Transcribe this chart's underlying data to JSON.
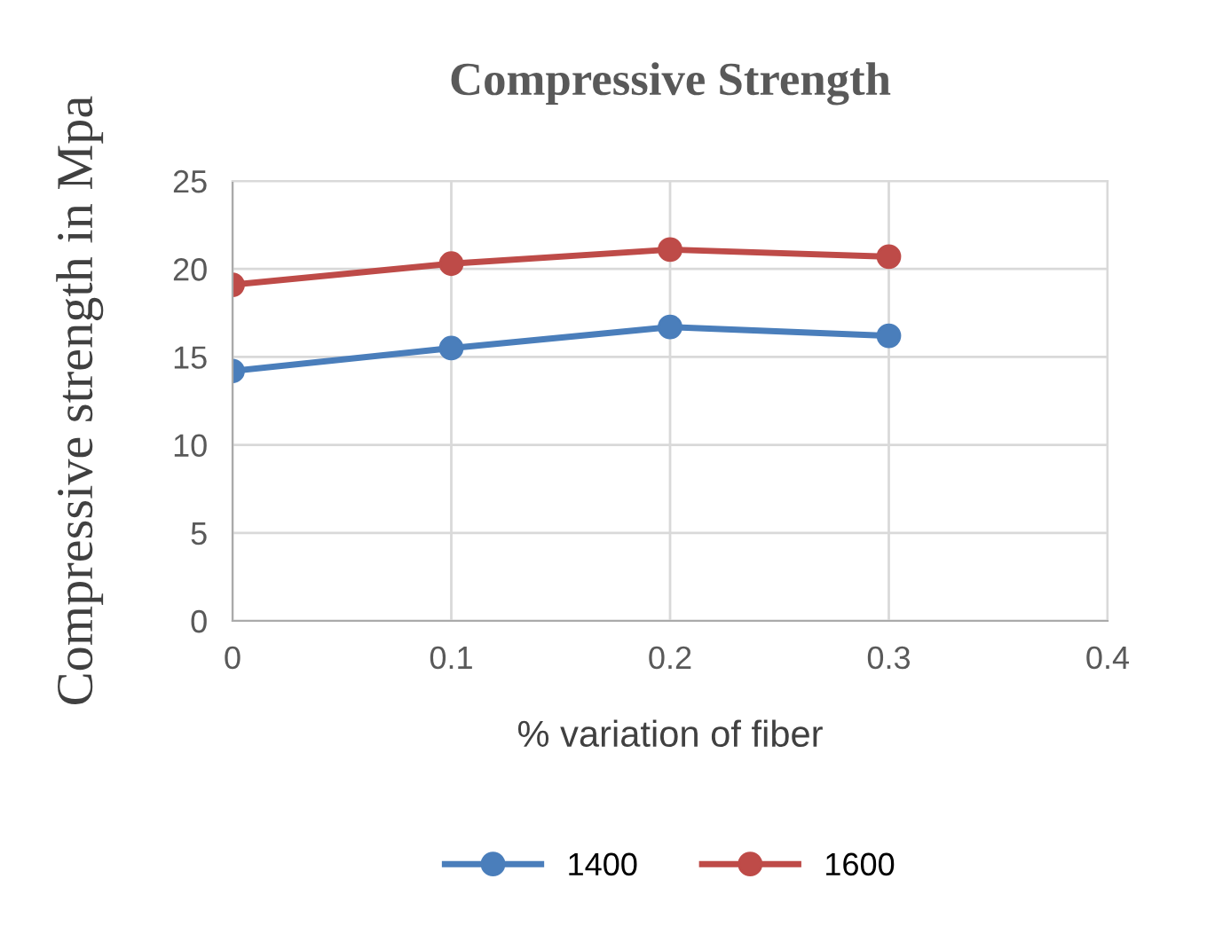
{
  "chart_data": {
    "type": "line",
    "title": "Compressive Strength",
    "xlabel": "% variation of fiber",
    "ylabel": "Compressive strength in Mpa",
    "x": [
      0,
      0.1,
      0.2,
      0.3
    ],
    "series": [
      {
        "name": "1400",
        "color": "#4a7ebb",
        "values": [
          14.2,
          15.5,
          16.7,
          16.2
        ]
      },
      {
        "name": "1600",
        "color": "#be4b48",
        "values": [
          19.1,
          20.3,
          21.1,
          20.7
        ]
      }
    ],
    "xlim": [
      0,
      0.4
    ],
    "xticks": [
      0,
      0.1,
      0.2,
      0.3,
      0.4
    ],
    "ylim": [
      0,
      25
    ],
    "yticks": [
      0,
      5,
      10,
      15,
      20,
      25
    ],
    "grid": true,
    "legend": "bottom",
    "marker": "circle",
    "line_style": "solid"
  }
}
